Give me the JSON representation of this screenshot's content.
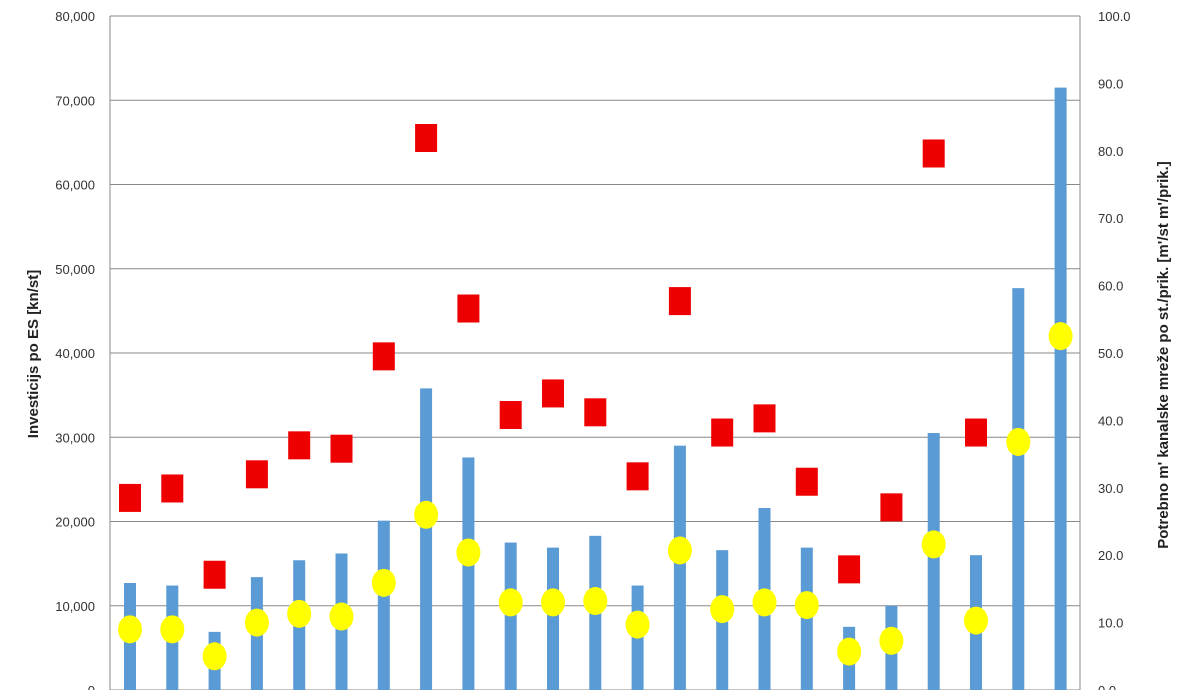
{
  "chart_data": {
    "type": "bar",
    "ylabel": "Investicijs po ES [kn/st]",
    "y2label": "Potrebno m' kanalske mreže po st./prik. [m'/st    m'/prik.]",
    "ylim": [
      0,
      80000
    ],
    "y2lim": [
      0,
      100
    ],
    "yticks": [
      "0",
      "10,000",
      "20,000",
      "30,000",
      "40,000",
      "50,000",
      "60,000",
      "70,000",
      "80,000"
    ],
    "y2ticks": [
      "0.0",
      "10.0",
      "20.0",
      "30.0",
      "40.0",
      "50.0",
      "60.0",
      "70.0",
      "80.0",
      "90.0",
      "100.0"
    ],
    "grid": true,
    "colors": {
      "bars": "#5b9bd5",
      "markers_square": "#ee0000",
      "markers_circle": "#ffff00",
      "grid": "#888888"
    },
    "series": [
      {
        "axis": "left",
        "kind": "bar",
        "values": [
          12700,
          12400,
          6900,
          13400,
          15400,
          16200,
          20100,
          35800,
          27600,
          17500,
          16900,
          18300,
          12400,
          29000,
          16600,
          21600,
          16900,
          7500,
          10000,
          30500,
          16000,
          47700,
          71500
        ]
      },
      {
        "axis": "right",
        "kind": "square",
        "values": [
          28.5,
          29.9,
          17.1,
          32.0,
          36.3,
          35.8,
          49.5,
          81.9,
          56.6,
          40.8,
          44.0,
          41.2,
          31.7,
          57.7,
          38.2,
          40.3,
          30.9,
          17.9,
          27.1,
          79.6,
          38.2,
          null,
          null
        ]
      },
      {
        "axis": "right",
        "kind": "circle",
        "values": [
          9.0,
          9.0,
          5.0,
          10.0,
          11.3,
          10.9,
          15.9,
          26.0,
          20.4,
          13.0,
          13.0,
          13.2,
          9.7,
          20.7,
          12.0,
          13.0,
          12.6,
          5.7,
          7.3,
          21.6,
          10.3,
          36.8,
          52.5
        ]
      }
    ]
  }
}
